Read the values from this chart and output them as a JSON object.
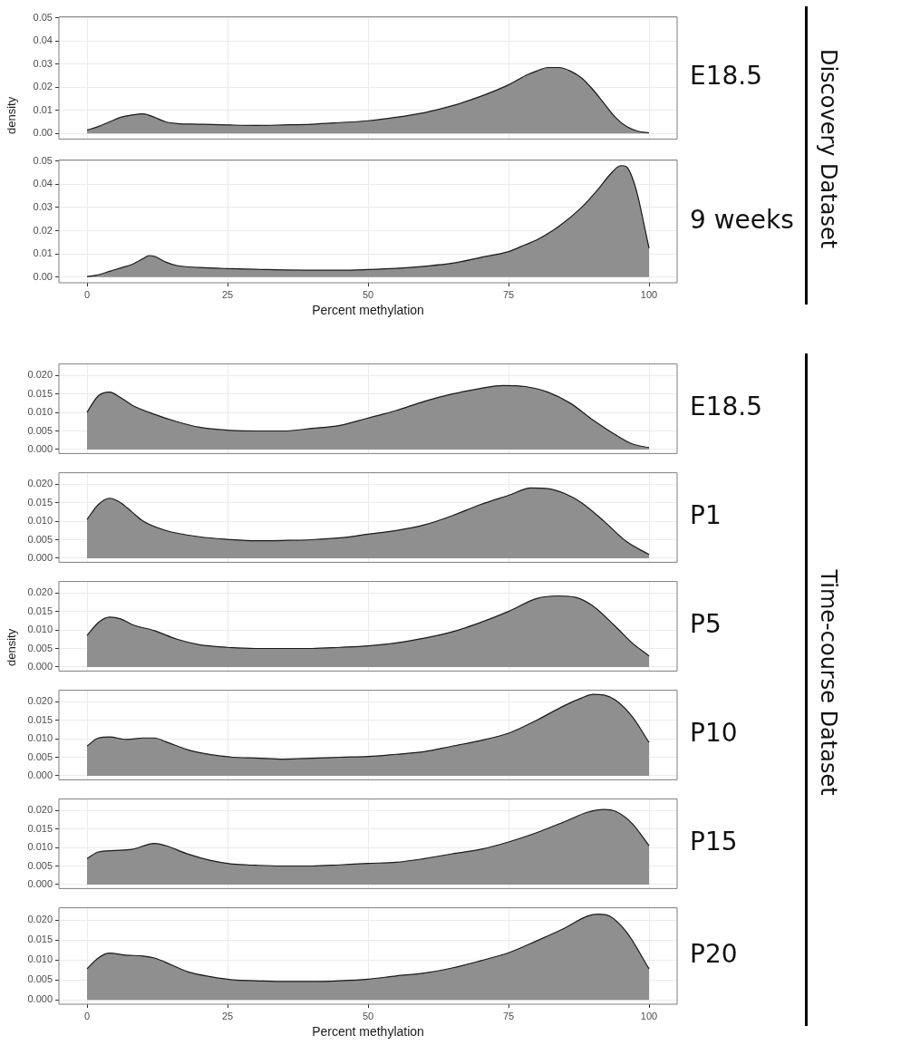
{
  "chart_data": [
    {
      "type": "area",
      "title": "E18.5",
      "ylabel": "density",
      "annotations": [
        "Discovery Dataset"
      ],
      "tick_labels": "y",
      "grid": true,
      "xlim": [
        -5,
        105
      ],
      "xticks": [
        0,
        25,
        50,
        75,
        100
      ],
      "ylim": [
        -0.0024,
        0.0504
      ],
      "yticks": [
        {
          "value": 0,
          "label": "0.00"
        },
        {
          "value": 0.01,
          "label": "0.01"
        },
        {
          "value": 0.02,
          "label": "0.02"
        },
        {
          "value": 0.03,
          "label": "0.03"
        },
        {
          "value": 0.04,
          "label": "0.04"
        },
        {
          "value": 0.05,
          "label": "0.05"
        }
      ],
      "x": [
        0,
        2,
        4,
        6,
        8,
        10,
        12,
        14,
        16,
        20,
        25,
        30,
        35,
        40,
        45,
        50,
        55,
        60,
        65,
        70,
        75,
        78,
        80,
        82,
        84,
        86,
        88,
        90,
        92,
        94,
        96,
        98,
        100
      ],
      "series": [
        {
          "color": "#8f8f8f",
          "values": [
            0.0015,
            0.003,
            0.005,
            0.007,
            0.008,
            0.0085,
            0.007,
            0.005,
            0.0043,
            0.004,
            0.0037,
            0.0035,
            0.0037,
            0.004,
            0.0047,
            0.0055,
            0.007,
            0.009,
            0.012,
            0.016,
            0.021,
            0.025,
            0.027,
            0.0285,
            0.0285,
            0.027,
            0.024,
            0.019,
            0.013,
            0.007,
            0.003,
            0.001,
            0.0002
          ]
        }
      ]
    },
    {
      "type": "area",
      "title": "9 weeks",
      "xlabel": "Percent methylation",
      "grid": true,
      "xlim": [
        -5,
        105
      ],
      "xticks": [
        0,
        25,
        50,
        75,
        100
      ],
      "ylim": [
        -0.0024,
        0.0504
      ],
      "yticks": [
        {
          "value": 0,
          "label": "0.00"
        },
        {
          "value": 0.01,
          "label": "0.01"
        },
        {
          "value": 0.02,
          "label": "0.02"
        },
        {
          "value": 0.03,
          "label": "0.03"
        },
        {
          "value": 0.04,
          "label": "0.04"
        },
        {
          "value": 0.05,
          "label": "0.05"
        }
      ],
      "x": [
        0,
        2,
        4,
        6,
        8,
        10,
        11,
        12,
        14,
        16,
        20,
        25,
        30,
        40,
        45,
        50,
        55,
        60,
        65,
        70,
        75,
        78,
        80,
        84,
        88,
        91,
        93,
        95,
        96,
        97,
        98,
        99,
        100
      ],
      "series": [
        {
          "color": "#8f8f8f",
          "values": [
            0.0003,
            0.001,
            0.0025,
            0.004,
            0.0055,
            0.008,
            0.0093,
            0.009,
            0.0065,
            0.005,
            0.0042,
            0.0037,
            0.0034,
            0.003,
            0.003,
            0.0033,
            0.0038,
            0.0047,
            0.006,
            0.0085,
            0.011,
            0.014,
            0.016,
            0.022,
            0.03,
            0.038,
            0.044,
            0.048,
            0.0475,
            0.043,
            0.035,
            0.024,
            0.0125
          ]
        }
      ]
    },
    {
      "type": "area",
      "title": "E18.5",
      "annotations": [
        "Time-course Dataset"
      ],
      "tick_labels": "y",
      "grid": true,
      "xlim": [
        -5,
        105
      ],
      "xticks": [
        0,
        25,
        50,
        75,
        100
      ],
      "ylim": [
        -0.0011,
        0.0231
      ],
      "yticks": [
        {
          "value": 0,
          "label": "0.000"
        },
        {
          "value": 0.005,
          "label": "0.005"
        },
        {
          "value": 0.01,
          "label": "0.010"
        },
        {
          "value": 0.015,
          "label": "0.015"
        },
        {
          "value": 0.02,
          "label": "0.020"
        }
      ],
      "x": [
        0,
        1,
        2,
        4,
        6,
        8,
        12,
        16,
        20,
        25,
        30,
        35,
        40,
        45,
        50,
        55,
        60,
        65,
        70,
        74,
        78,
        82,
        86,
        90,
        94,
        97,
        100
      ],
      "series": [
        {
          "color": "#8f8f8f",
          "values": [
            0.01,
            0.0125,
            0.0145,
            0.0155,
            0.014,
            0.012,
            0.0095,
            0.0075,
            0.006,
            0.0052,
            0.005,
            0.005,
            0.0057,
            0.0065,
            0.0085,
            0.0105,
            0.013,
            0.015,
            0.0165,
            0.0173,
            0.017,
            0.0155,
            0.0125,
            0.008,
            0.004,
            0.0015,
            0.0005
          ]
        }
      ]
    },
    {
      "type": "area",
      "title": "P1",
      "tick_labels": "y",
      "grid": true,
      "xlim": [
        -5,
        105
      ],
      "xticks": [
        0,
        25,
        50,
        75,
        100
      ],
      "ylim": [
        -0.0011,
        0.0231
      ],
      "yticks": [
        {
          "value": 0,
          "label": "0.000"
        },
        {
          "value": 0.005,
          "label": "0.005"
        },
        {
          "value": 0.01,
          "label": "0.010"
        },
        {
          "value": 0.015,
          "label": "0.015"
        },
        {
          "value": 0.02,
          "label": "0.020"
        }
      ],
      "x": [
        0,
        2,
        4,
        6,
        8,
        10,
        14,
        20,
        25,
        30,
        35,
        40,
        45,
        50,
        55,
        60,
        65,
        70,
        75,
        79,
        82,
        85,
        88,
        92,
        96,
        100
      ],
      "series": [
        {
          "color": "#8f8f8f",
          "values": [
            0.0105,
            0.0145,
            0.0162,
            0.015,
            0.0125,
            0.01,
            0.0075,
            0.0058,
            0.0051,
            0.0047,
            0.0048,
            0.005,
            0.0055,
            0.0065,
            0.0075,
            0.009,
            0.0115,
            0.0145,
            0.017,
            0.019,
            0.0188,
            0.0175,
            0.015,
            0.01,
            0.0045,
            0.001
          ]
        }
      ]
    },
    {
      "type": "area",
      "title": "P5",
      "ylabel": "density",
      "tick_labels": "y",
      "grid": true,
      "xlim": [
        -5,
        105
      ],
      "xticks": [
        0,
        25,
        50,
        75,
        100
      ],
      "ylim": [
        -0.0011,
        0.0231
      ],
      "yticks": [
        {
          "value": 0,
          "label": "0.000"
        },
        {
          "value": 0.005,
          "label": "0.005"
        },
        {
          "value": 0.01,
          "label": "0.010"
        },
        {
          "value": 0.015,
          "label": "0.015"
        },
        {
          "value": 0.02,
          "label": "0.020"
        }
      ],
      "x": [
        0,
        2,
        4,
        6,
        8,
        12,
        16,
        20,
        25,
        30,
        35,
        40,
        45,
        50,
        55,
        60,
        65,
        70,
        75,
        80,
        84,
        87,
        90,
        94,
        97,
        100
      ],
      "series": [
        {
          "color": "#8f8f8f",
          "values": [
            0.0085,
            0.012,
            0.0135,
            0.013,
            0.0115,
            0.0098,
            0.0075,
            0.006,
            0.0053,
            0.005,
            0.005,
            0.005,
            0.0053,
            0.0057,
            0.0065,
            0.0078,
            0.0095,
            0.012,
            0.015,
            0.0185,
            0.0192,
            0.0188,
            0.0165,
            0.011,
            0.0065,
            0.003
          ]
        }
      ]
    },
    {
      "type": "area",
      "title": "P10",
      "tick_labels": "y",
      "grid": true,
      "xlim": [
        -5,
        105
      ],
      "xticks": [
        0,
        25,
        50,
        75,
        100
      ],
      "ylim": [
        -0.0011,
        0.0231
      ],
      "yticks": [
        {
          "value": 0,
          "label": "0.000"
        },
        {
          "value": 0.005,
          "label": "0.005"
        },
        {
          "value": 0.01,
          "label": "0.010"
        },
        {
          "value": 0.015,
          "label": "0.015"
        },
        {
          "value": 0.02,
          "label": "0.020"
        }
      ],
      "x": [
        0,
        2,
        4,
        7,
        10,
        12,
        14,
        18,
        22,
        26,
        30,
        35,
        40,
        45,
        50,
        55,
        60,
        65,
        70,
        75,
        80,
        85,
        88,
        90,
        92,
        94,
        97,
        100
      ],
      "series": [
        {
          "color": "#8f8f8f",
          "values": [
            0.008,
            0.0102,
            0.0105,
            0.0098,
            0.0102,
            0.0102,
            0.0092,
            0.007,
            0.0057,
            0.005,
            0.0048,
            0.0045,
            0.0047,
            0.005,
            0.0052,
            0.0058,
            0.0065,
            0.008,
            0.0095,
            0.0115,
            0.015,
            0.019,
            0.021,
            0.022,
            0.0218,
            0.0205,
            0.016,
            0.009
          ]
        }
      ]
    },
    {
      "type": "area",
      "title": "P15",
      "tick_labels": "y",
      "grid": true,
      "xlim": [
        -5,
        105
      ],
      "xticks": [
        0,
        25,
        50,
        75,
        100
      ],
      "ylim": [
        -0.0011,
        0.0231
      ],
      "yticks": [
        {
          "value": 0,
          "label": "0.000"
        },
        {
          "value": 0.005,
          "label": "0.005"
        },
        {
          "value": 0.01,
          "label": "0.010"
        },
        {
          "value": 0.015,
          "label": "0.015"
        },
        {
          "value": 0.02,
          "label": "0.020"
        }
      ],
      "x": [
        0,
        2,
        5,
        8,
        12,
        14,
        18,
        22,
        26,
        30,
        35,
        40,
        45,
        50,
        55,
        60,
        65,
        70,
        75,
        80,
        85,
        89,
        92,
        94,
        97,
        100
      ],
      "series": [
        {
          "color": "#8f8f8f",
          "values": [
            0.007,
            0.0088,
            0.0092,
            0.0095,
            0.0111,
            0.0105,
            0.0082,
            0.0065,
            0.0055,
            0.0052,
            0.005,
            0.005,
            0.0053,
            0.0057,
            0.006,
            0.007,
            0.0083,
            0.0095,
            0.0115,
            0.014,
            0.017,
            0.0195,
            0.0203,
            0.0198,
            0.0165,
            0.0105
          ]
        }
      ]
    },
    {
      "type": "area",
      "title": "P20",
      "xlabel": "Percent methylation",
      "grid": true,
      "xlim": [
        -5,
        105
      ],
      "xticks": [
        0,
        25,
        50,
        75,
        100
      ],
      "ylim": [
        -0.0011,
        0.0231
      ],
      "yticks": [
        {
          "value": 0,
          "label": "0.000"
        },
        {
          "value": 0.005,
          "label": "0.005"
        },
        {
          "value": 0.01,
          "label": "0.010"
        },
        {
          "value": 0.015,
          "label": "0.015"
        },
        {
          "value": 0.02,
          "label": "0.020"
        }
      ],
      "x": [
        0,
        2,
        4,
        7,
        10,
        12,
        15,
        18,
        22,
        26,
        30,
        35,
        40,
        45,
        50,
        55,
        60,
        65,
        70,
        75,
        80,
        85,
        89,
        91,
        93,
        96,
        100
      ],
      "series": [
        {
          "color": "#8f8f8f",
          "values": [
            0.0078,
            0.0105,
            0.0117,
            0.0112,
            0.011,
            0.0105,
            0.0088,
            0.007,
            0.0058,
            0.005,
            0.0048,
            0.0046,
            0.0046,
            0.0048,
            0.0052,
            0.006,
            0.0067,
            0.008,
            0.0098,
            0.0118,
            0.0148,
            0.018,
            0.021,
            0.0215,
            0.021,
            0.017,
            0.0078
          ]
        }
      ]
    }
  ]
}
